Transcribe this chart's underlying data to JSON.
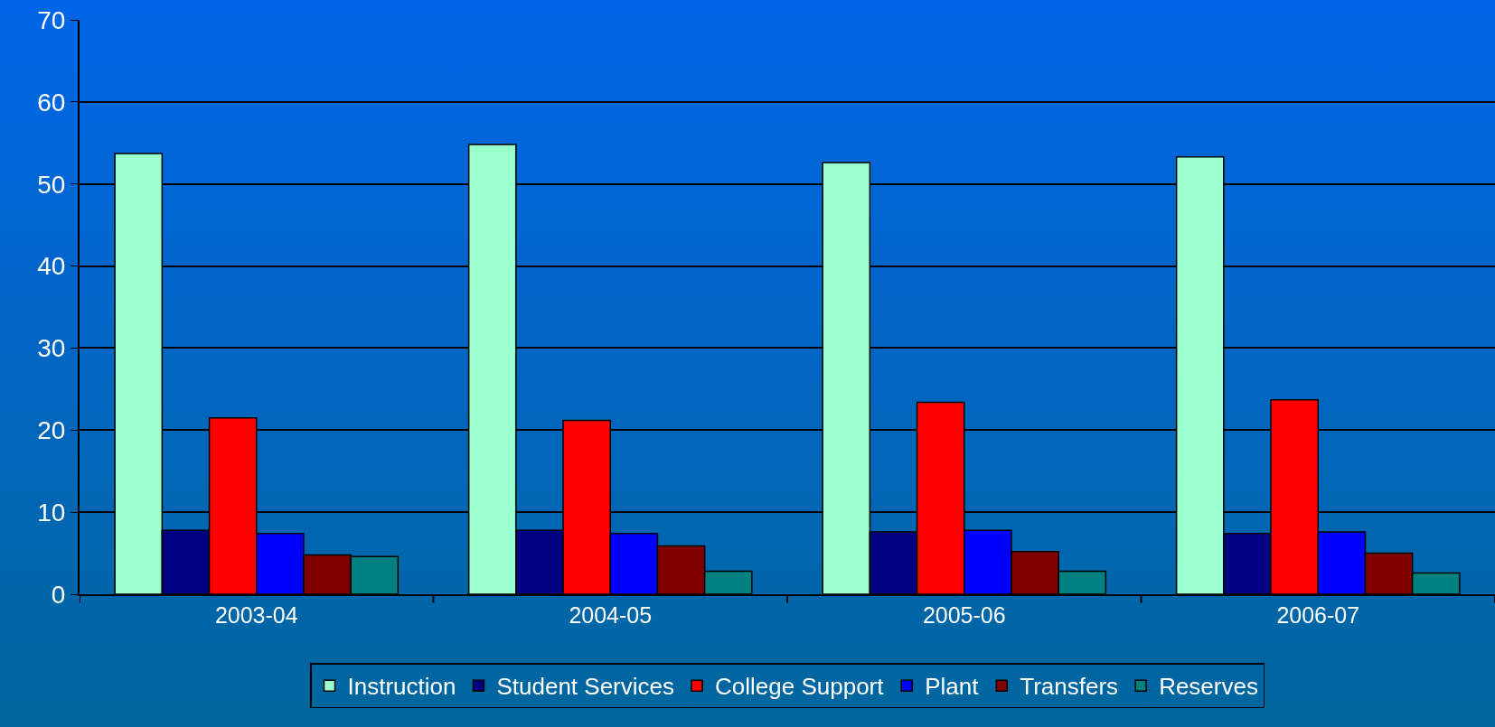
{
  "chart_data": {
    "type": "bar",
    "categories": [
      "2003-04",
      "2004-05",
      "2005-06",
      "2006-07"
    ],
    "series": [
      {
        "name": "Instruction",
        "color": "#99ffcc",
        "values": [
          53.7,
          54.8,
          52.6,
          53.3
        ]
      },
      {
        "name": "Student Services",
        "color": "#000080",
        "values": [
          7.8,
          7.8,
          7.6,
          7.4
        ]
      },
      {
        "name": "College Support",
        "color": "#ff0000",
        "values": [
          21.5,
          21.2,
          23.4,
          23.7
        ]
      },
      {
        "name": "Plant",
        "color": "#0000ff",
        "values": [
          7.4,
          7.4,
          7.8,
          7.6
        ]
      },
      {
        "name": "Transfers",
        "color": "#800000",
        "values": [
          4.8,
          5.9,
          5.2,
          5.0
        ]
      },
      {
        "name": "Reserves",
        "color": "#008080",
        "values": [
          4.6,
          2.8,
          2.8,
          2.6
        ]
      }
    ],
    "ylim": [
      0,
      70
    ],
    "yticks": [
      0,
      10,
      20,
      30,
      40,
      50,
      60,
      70
    ],
    "grid": "y",
    "legend": "bottom"
  }
}
